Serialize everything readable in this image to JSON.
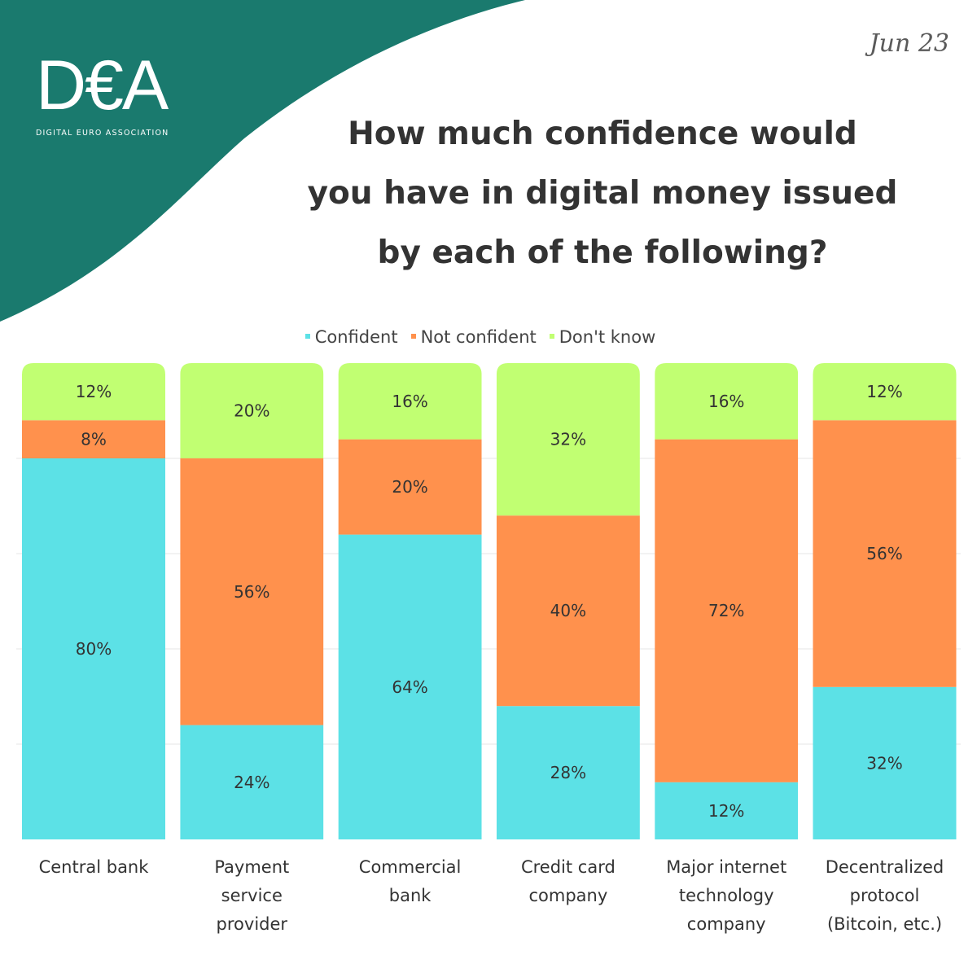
{
  "brand": {
    "logo_text": "D€A",
    "logo_subtitle": "DIGITAL EURO ASSOCIATION",
    "primary_color": "#1a7a6e"
  },
  "date": "Jun 23",
  "title_lines": [
    "How much confidence would",
    "you have in digital money issued",
    "by each of the following?"
  ],
  "chart_data": {
    "type": "bar",
    "stacked": true,
    "title": "How much confidence would you have in digital money issued by each of the following?",
    "xlabel": "",
    "ylabel": "",
    "ylim": [
      0,
      100
    ],
    "grid": true,
    "legend_position": "top",
    "categories": [
      [
        "Central bank"
      ],
      [
        "Payment",
        "service",
        "provider"
      ],
      [
        "Commercial",
        "bank"
      ],
      [
        "Credit card",
        "company"
      ],
      [
        "Major internet",
        "technology",
        "company"
      ],
      [
        "Decentralized",
        "protocol",
        "(Bitcoin, etc.)"
      ]
    ],
    "series": [
      {
        "name": "Confident",
        "color": "#5ce1e6",
        "values": [
          80,
          24,
          64,
          28,
          12,
          32
        ],
        "labels": [
          "80%",
          "24%",
          "64%",
          "28%",
          "12%",
          "32%"
        ]
      },
      {
        "name": "Not confident",
        "color": "#ff914d",
        "values": [
          8,
          56,
          20,
          40,
          72,
          56
        ],
        "labels": [
          "8%",
          "56%",
          "20%",
          "40%",
          "72%",
          "56%"
        ]
      },
      {
        "name": "Don't know",
        "color": "#c1ff72",
        "values": [
          12,
          20,
          16,
          32,
          16,
          12
        ],
        "labels": [
          "12%",
          "20%",
          "16%",
          "32%",
          "16%",
          "12%"
        ]
      }
    ]
  }
}
